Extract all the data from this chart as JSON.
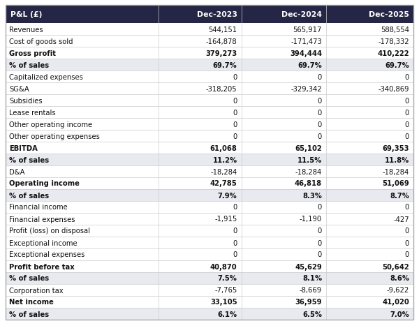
{
  "header": [
    "P&L (£)",
    "Dec-2023",
    "Dec-2024",
    "Dec-2025"
  ],
  "rows": [
    {
      "label": "Revenues",
      "values": [
        "544,151",
        "565,917",
        "588,554"
      ],
      "bold": false,
      "shaded": false
    },
    {
      "label": "Cost of goods sold",
      "values": [
        "-164,878",
        "-171,473",
        "-178,332"
      ],
      "bold": false,
      "shaded": false
    },
    {
      "label": "Gross profit",
      "values": [
        "379,273",
        "394,444",
        "410,222"
      ],
      "bold": true,
      "shaded": false
    },
    {
      "label": "% of sales",
      "values": [
        "69.7%",
        "69.7%",
        "69.7%"
      ],
      "bold": true,
      "shaded": true
    },
    {
      "label": "Capitalized expenses",
      "values": [
        "0",
        "0",
        "0"
      ],
      "bold": false,
      "shaded": false
    },
    {
      "label": "SG&A",
      "values": [
        "-318,205",
        "-329,342",
        "-340,869"
      ],
      "bold": false,
      "shaded": false
    },
    {
      "label": "Subsidies",
      "values": [
        "0",
        "0",
        "0"
      ],
      "bold": false,
      "shaded": false
    },
    {
      "label": "Lease rentals",
      "values": [
        "0",
        "0",
        "0"
      ],
      "bold": false,
      "shaded": false
    },
    {
      "label": "Other operating income",
      "values": [
        "0",
        "0",
        "0"
      ],
      "bold": false,
      "shaded": false
    },
    {
      "label": "Other operating expenses",
      "values": [
        "0",
        "0",
        "0"
      ],
      "bold": false,
      "shaded": false
    },
    {
      "label": "EBITDA",
      "values": [
        "61,068",
        "65,102",
        "69,353"
      ],
      "bold": true,
      "shaded": false
    },
    {
      "label": "% of sales",
      "values": [
        "11.2%",
        "11.5%",
        "11.8%"
      ],
      "bold": true,
      "shaded": true
    },
    {
      "label": "D&A",
      "values": [
        "-18,284",
        "-18,284",
        "-18,284"
      ],
      "bold": false,
      "shaded": false
    },
    {
      "label": "Operating income",
      "values": [
        "42,785",
        "46,818",
        "51,069"
      ],
      "bold": true,
      "shaded": false
    },
    {
      "label": "% of sales",
      "values": [
        "7.9%",
        "8.3%",
        "8.7%"
      ],
      "bold": true,
      "shaded": true
    },
    {
      "label": "Financial income",
      "values": [
        "0",
        "0",
        "0"
      ],
      "bold": false,
      "shaded": false
    },
    {
      "label": "Financial expenses",
      "values": [
        "-1,915",
        "-1,190",
        "-427"
      ],
      "bold": false,
      "shaded": false
    },
    {
      "label": "Profit (loss) on disposal",
      "values": [
        "0",
        "0",
        "0"
      ],
      "bold": false,
      "shaded": false
    },
    {
      "label": "Exceptional income",
      "values": [
        "0",
        "0",
        "0"
      ],
      "bold": false,
      "shaded": false
    },
    {
      "label": "Exceptional expenses",
      "values": [
        "0",
        "0",
        "0"
      ],
      "bold": false,
      "shaded": false
    },
    {
      "label": "Profit before tax",
      "values": [
        "40,870",
        "45,629",
        "50,642"
      ],
      "bold": true,
      "shaded": false
    },
    {
      "label": "% of sales",
      "values": [
        "7.5%",
        "8.1%",
        "8.6%"
      ],
      "bold": true,
      "shaded": true
    },
    {
      "label": "Corporation tax",
      "values": [
        "-7,765",
        "-8,669",
        "-9,622"
      ],
      "bold": false,
      "shaded": false
    },
    {
      "label": "Net income",
      "values": [
        "33,105",
        "36,959",
        "41,020"
      ],
      "bold": true,
      "shaded": false
    },
    {
      "label": "% of sales",
      "values": [
        "6.1%",
        "6.5%",
        "7.0%"
      ],
      "bold": true,
      "shaded": true
    }
  ],
  "header_bg": "#252545",
  "header_fg": "#ffffff",
  "shaded_bg": "#e8eaf0",
  "normal_bg": "#ffffff",
  "header_fontsize": 7.8,
  "row_fontsize": 7.2,
  "fig_width": 6.0,
  "fig_height": 4.81,
  "dpi": 100
}
